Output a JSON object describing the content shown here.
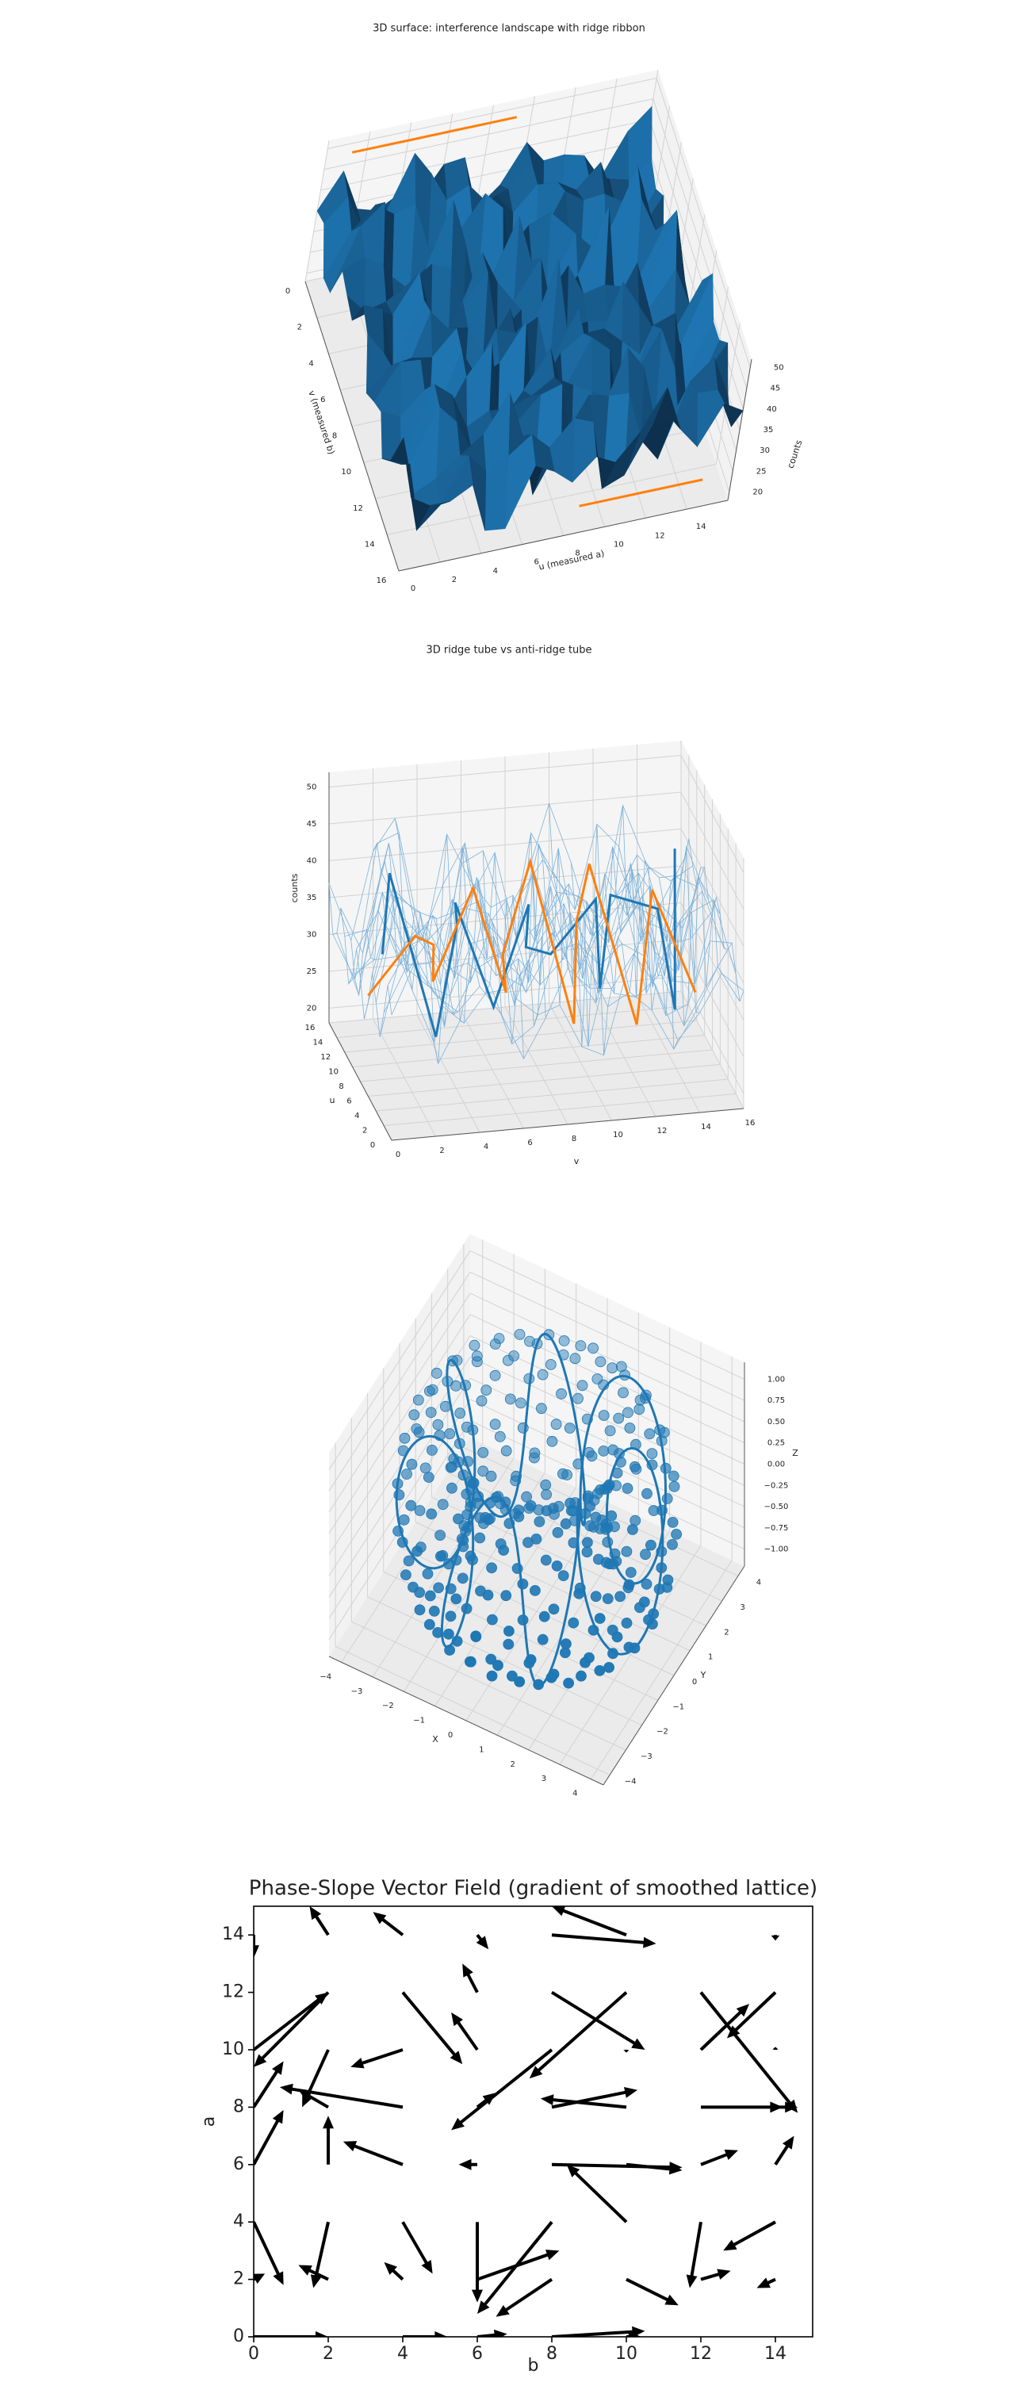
{
  "chart_data": [
    {
      "type": "surface3d",
      "title": "3D surface: interference landscape with ridge ribbon",
      "xlabel": "u  (measured a)",
      "ylabel": "v  (measured b)",
      "zlabel": "counts",
      "xlim": [
        0,
        16
      ],
      "ylim": [
        0,
        16
      ],
      "zlim": [
        18,
        52
      ],
      "xticks": [
        0,
        2,
        4,
        6,
        8,
        10,
        12,
        14
      ],
      "yticks": [
        0,
        2,
        4,
        6,
        8,
        10,
        12,
        14,
        16
      ],
      "zticks": [
        20,
        25,
        30,
        35,
        40,
        45,
        50
      ],
      "surface_color": "#1f77b4",
      "ribbon_color": "#ff7f0e"
    },
    {
      "type": "line3d",
      "title": "3D ridge tube vs anti-ridge tube",
      "xlabel": "v",
      "ylabel": "u",
      "zlabel": "counts",
      "xlim": [
        0,
        16
      ],
      "ylim": [
        0,
        16
      ],
      "zlim": [
        18,
        52
      ],
      "xticks": [
        0,
        2,
        4,
        6,
        8,
        10,
        12,
        14,
        16
      ],
      "yticks": [
        0,
        2,
        4,
        6,
        8,
        10,
        12,
        14,
        16
      ],
      "zticks": [
        20,
        25,
        30,
        35,
        40,
        45,
        50
      ],
      "colors": [
        "#1f77b4",
        "#ff7f0e"
      ],
      "wire_color": "#7fb3d9"
    },
    {
      "type": "scatter3d",
      "xlabel": "X",
      "ylabel": "Y",
      "zlabel": "Z",
      "xlim": [
        -4.4,
        4.4
      ],
      "ylim": [
        -4.4,
        4.4
      ],
      "zlim": [
        -1.2,
        1.2
      ],
      "xticks": [
        {
          "value": -4,
          "label": "−4"
        },
        {
          "value": -3,
          "label": "−3"
        },
        {
          "value": -2,
          "label": "−2"
        },
        {
          "value": -1,
          "label": "−1"
        },
        0,
        1,
        2,
        3,
        4
      ],
      "yticks": [
        {
          "value": -4,
          "label": "−4"
        },
        {
          "value": -3,
          "label": "−3"
        },
        {
          "value": -2,
          "label": "−2"
        },
        {
          "value": -1,
          "label": "−1"
        },
        0,
        1,
        2,
        3,
        4
      ],
      "zticks": [
        {
          "value": -1,
          "label": "−1.00"
        },
        {
          "value": -0.75,
          "label": "−0.75"
        },
        {
          "value": -0.5,
          "label": "−0.50"
        },
        {
          "value": -0.25,
          "label": "−0.25"
        },
        {
          "value": 0,
          "label": "0.00"
        },
        {
          "value": 0.25,
          "label": "0.25"
        },
        {
          "value": 0.5,
          "label": "0.50"
        },
        {
          "value": 0.75,
          "label": "0.75"
        },
        {
          "value": 1,
          "label": "1.00"
        }
      ],
      "color": "#1f77b4"
    },
    {
      "type": "quiver",
      "title": "Phase-Slope Vector Field (gradient of smoothed lattice)",
      "xlabel": "b",
      "ylabel": "a",
      "xlim": [
        0,
        15
      ],
      "ylim": [
        0,
        15
      ],
      "xticks": [
        0,
        2,
        4,
        6,
        8,
        10,
        12,
        14
      ],
      "yticks": [
        0,
        2,
        4,
        6,
        8,
        10,
        12,
        14
      ],
      "color": "#000000",
      "x": [
        0,
        2,
        4,
        6,
        8,
        10,
        12,
        14,
        0,
        2,
        4,
        6,
        8,
        10,
        12,
        14,
        0,
        2,
        4,
        6,
        8,
        10,
        12,
        14,
        0,
        2,
        4,
        6,
        8,
        10,
        12,
        14,
        0,
        2,
        4,
        6,
        8,
        10,
        12,
        14,
        0,
        2,
        4,
        6,
        8,
        10,
        12,
        14,
        0,
        2,
        4,
        6,
        8,
        10,
        12,
        14,
        0,
        2,
        4,
        6,
        8,
        10,
        12,
        14
      ],
      "y": [
        0,
        0,
        0,
        0,
        0,
        0,
        0,
        0,
        2,
        2,
        2,
        2,
        2,
        2,
        2,
        2,
        4,
        4,
        4,
        4,
        4,
        4,
        4,
        4,
        6,
        6,
        6,
        6,
        6,
        6,
        6,
        6,
        8,
        8,
        8,
        8,
        8,
        8,
        8,
        8,
        10,
        10,
        10,
        10,
        10,
        10,
        10,
        10,
        12,
        12,
        12,
        12,
        12,
        12,
        12,
        12,
        14,
        14,
        14,
        14,
        14,
        14,
        14,
        14
      ],
      "u": [
        2,
        0,
        1.2,
        0.8,
        2.5,
        0.4,
        0,
        0,
        0.3,
        -0.8,
        -0.5,
        2.2,
        -1.5,
        1.4,
        0.8,
        -0.5,
        0.8,
        -0.4,
        0.8,
        0,
        -2,
        -1.6,
        -0.3,
        -1.4,
        0.8,
        0,
        -1.6,
        -0.5,
        3.5,
        1.5,
        1,
        0.5,
        0.8,
        -0.8,
        -3.3,
        0.5,
        2.3,
        -2.3,
        2.2,
        0.6,
        2,
        -0.7,
        -1.4,
        -0.7,
        -2.7,
        0,
        1.3,
        0,
        0,
        -2,
        1.6,
        -0.4,
        2.5,
        -2.6,
        2.6,
        -1.3,
        0,
        -0.5,
        -0.8,
        0.3,
        2.8,
        -2,
        0,
        0
      ],
      "v": [
        0,
        0,
        0,
        0.1,
        0.2,
        0,
        0,
        0,
        0.2,
        0.5,
        0.6,
        1,
        -1.3,
        -0.9,
        0.3,
        -0.3,
        -2.2,
        -2.3,
        -1.8,
        -2.8,
        -3.2,
        2,
        -2.3,
        -1,
        1.9,
        1.7,
        0.8,
        0,
        -0.1,
        -0.2,
        0.5,
        1,
        1.6,
        0.6,
        0.7,
        0.5,
        0.6,
        0.3,
        0,
        0,
        2,
        -2,
        -0.6,
        1.3,
        -2.8,
        -0.1,
        1.6,
        0.1,
        0,
        -2.6,
        -2.5,
        1,
        -2,
        -3,
        -4.2,
        -1.6,
        -0.8,
        1,
        0.8,
        -0.5,
        -0.3,
        1,
        0,
        -0.2
      ]
    }
  ]
}
